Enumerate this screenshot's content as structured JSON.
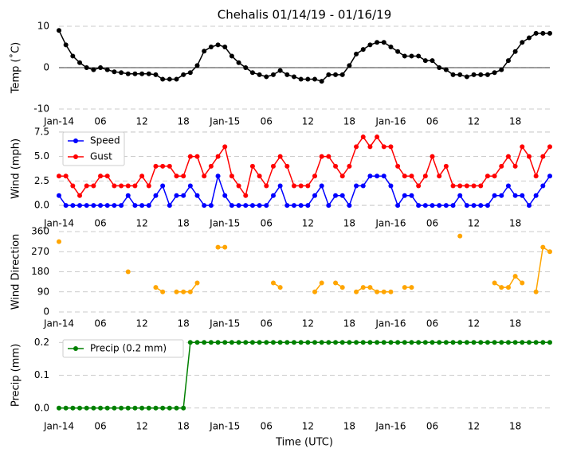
{
  "chart_data": [
    {
      "type": "line",
      "title": "Chehalis 01/14/19 - 01/16/19",
      "ylabel": "Temp (˚C)",
      "x": [
        0,
        1,
        2,
        3,
        4,
        5,
        6,
        7,
        8,
        9,
        10,
        11,
        12,
        13,
        14,
        15,
        16,
        17,
        18,
        19,
        20,
        21,
        22,
        23,
        24,
        25,
        26,
        27,
        28,
        29,
        30,
        31,
        32,
        33,
        34,
        35,
        36,
        37,
        38,
        39,
        40,
        41,
        42,
        43,
        44,
        45,
        46,
        47,
        48,
        49,
        50,
        51,
        52,
        53,
        54,
        55,
        56,
        57,
        58,
        59,
        60,
        61,
        62,
        63,
        64,
        65,
        66,
        67,
        68,
        69,
        70,
        71
      ],
      "series": [
        {
          "name": null,
          "color": "#000000",
          "values": [
            9,
            5.5,
            2.8,
            1.2,
            0,
            -0.5,
            0,
            -0.5,
            -1,
            -1.2,
            -1.5,
            -1.5,
            -1.5,
            -1.5,
            -1.7,
            -2.8,
            -2.8,
            -2.8,
            -1.7,
            -1.2,
            0.5,
            4,
            5,
            5.5,
            5,
            2.8,
            1.2,
            0,
            -1.2,
            -1.7,
            -2.2,
            -1.7,
            -0.7,
            -1.7,
            -2.2,
            -2.8,
            -2.8,
            -2.8,
            -3.3,
            -1.7,
            -1.7,
            -1.7,
            0.5,
            3.3,
            4.4,
            5.5,
            6.1,
            6.1,
            5,
            3.9,
            2.8,
            2.8,
            2.8,
            1.7,
            1.7,
            0,
            -0.5,
            -1.7,
            -1.7,
            -2.2,
            -1.7,
            -1.7,
            -1.7,
            -1.2,
            -0.5,
            1.7,
            3.9,
            6.1,
            7.2,
            8.3,
            8.3,
            8.3
          ]
        }
      ],
      "xlim": [
        0,
        71
      ],
      "xticks": [
        {
          "value": 0,
          "label": "Jan-14"
        },
        {
          "value": 6,
          "label": "06"
        },
        {
          "value": 12,
          "label": "12"
        },
        {
          "value": 18,
          "label": "18"
        },
        {
          "value": 24,
          "label": "Jan-15"
        },
        {
          "value": 30,
          "label": "06"
        },
        {
          "value": 36,
          "label": "12"
        },
        {
          "value": 42,
          "label": "18"
        },
        {
          "value": 48,
          "label": "Jan-16"
        },
        {
          "value": 54,
          "label": "06"
        },
        {
          "value": 60,
          "label": "12"
        },
        {
          "value": 66,
          "label": "18"
        }
      ],
      "ylim": [
        -10,
        10
      ],
      "yticks": [
        -10,
        0,
        10
      ],
      "grid": true,
      "zero_line": true
    },
    {
      "type": "line",
      "ylabel": "Wind (mph)",
      "x": [
        0,
        1,
        2,
        3,
        4,
        5,
        6,
        7,
        8,
        9,
        10,
        11,
        12,
        13,
        14,
        15,
        16,
        17,
        18,
        19,
        20,
        21,
        22,
        23,
        24,
        25,
        26,
        27,
        28,
        29,
        30,
        31,
        32,
        33,
        34,
        35,
        36,
        37,
        38,
        39,
        40,
        41,
        42,
        43,
        44,
        45,
        46,
        47,
        48,
        49,
        50,
        51,
        52,
        53,
        54,
        55,
        56,
        57,
        58,
        59,
        60,
        61,
        62,
        63,
        64,
        65,
        66,
        67,
        68,
        69,
        70,
        71
      ],
      "series": [
        {
          "name": "Speed",
          "color": "#0000ff",
          "values": [
            1,
            0,
            0,
            0,
            0,
            0,
            0,
            0,
            0,
            0,
            1,
            0,
            0,
            0,
            1,
            2,
            0,
            1,
            1,
            2,
            1,
            0,
            0,
            3,
            1,
            0,
            0,
            0,
            0,
            0,
            0,
            1,
            2,
            0,
            0,
            0,
            0,
            1,
            2,
            0,
            1,
            1,
            0,
            2,
            2,
            3,
            3,
            3,
            2,
            0,
            1,
            1,
            0,
            0,
            0,
            0,
            0,
            0,
            1,
            0,
            0,
            0,
            0,
            1,
            1,
            2,
            1,
            1,
            0,
            1,
            2,
            3
          ]
        },
        {
          "name": "Gust",
          "color": "#ff0000",
          "values": [
            3,
            3,
            2,
            1,
            2,
            2,
            3,
            3,
            2,
            2,
            2,
            2,
            3,
            2,
            4,
            4,
            4,
            3,
            3,
            5,
            5,
            3,
            4,
            5,
            6,
            3,
            2,
            1,
            4,
            3,
            2,
            4,
            5,
            4,
            2,
            2,
            2,
            3,
            5,
            5,
            4,
            3,
            4,
            6,
            7,
            6,
            7,
            6,
            6,
            4,
            3,
            3,
            2,
            3,
            5,
            3,
            4,
            2,
            2,
            2,
            2,
            2,
            3,
            3,
            4,
            5,
            4,
            6,
            5,
            3,
            5,
            6
          ]
        }
      ],
      "xlim": [
        0,
        71
      ],
      "xticks": [
        {
          "value": 0,
          "label": "Jan-14"
        },
        {
          "value": 6,
          "label": "06"
        },
        {
          "value": 12,
          "label": "12"
        },
        {
          "value": 18,
          "label": "18"
        },
        {
          "value": 24,
          "label": "Jan-15"
        },
        {
          "value": 30,
          "label": "06"
        },
        {
          "value": 36,
          "label": "12"
        },
        {
          "value": 42,
          "label": "18"
        },
        {
          "value": 48,
          "label": "Jan-16"
        },
        {
          "value": 54,
          "label": "06"
        },
        {
          "value": 60,
          "label": "12"
        },
        {
          "value": 66,
          "label": "18"
        }
      ],
      "ylim": [
        -0.4,
        7.9
      ],
      "yticks": [
        {
          "value": 0,
          "label": "0.0"
        },
        {
          "value": 2.5,
          "label": "2.5"
        },
        {
          "value": 5,
          "label": "5.0"
        },
        {
          "value": 7.5,
          "label": "7.5"
        }
      ],
      "grid": true,
      "legend": "upper-left"
    },
    {
      "type": "line",
      "ylabel": "Wind Direction",
      "x": [
        0,
        1,
        2,
        3,
        4,
        5,
        6,
        7,
        8,
        9,
        10,
        11,
        12,
        13,
        14,
        15,
        16,
        17,
        18,
        19,
        20,
        21,
        22,
        23,
        24,
        25,
        26,
        27,
        28,
        29,
        30,
        31,
        32,
        33,
        34,
        35,
        36,
        37,
        38,
        39,
        40,
        41,
        42,
        43,
        44,
        45,
        46,
        47,
        48,
        49,
        50,
        51,
        52,
        53,
        54,
        55,
        56,
        57,
        58,
        59,
        60,
        61,
        62,
        63,
        64,
        65,
        66,
        67,
        68,
        69,
        70,
        71
      ],
      "series": [
        {
          "name": null,
          "color": "#ffa500",
          "values": [
            315,
            null,
            null,
            null,
            null,
            null,
            null,
            null,
            null,
            null,
            180,
            null,
            null,
            null,
            110,
            90,
            null,
            90,
            90,
            90,
            130,
            null,
            null,
            290,
            290,
            null,
            null,
            null,
            null,
            null,
            null,
            130,
            110,
            null,
            null,
            null,
            null,
            90,
            130,
            null,
            130,
            110,
            null,
            90,
            110,
            110,
            90,
            90,
            90,
            null,
            110,
            110,
            null,
            null,
            null,
            null,
            null,
            null,
            340,
            null,
            null,
            null,
            null,
            130,
            110,
            110,
            160,
            130,
            null,
            90,
            290,
            270
          ]
        }
      ],
      "xlim": [
        0,
        71
      ],
      "xticks": [
        {
          "value": 0,
          "label": "Jan-14"
        },
        {
          "value": 6,
          "label": "06"
        },
        {
          "value": 12,
          "label": "12"
        },
        {
          "value": 18,
          "label": "18"
        },
        {
          "value": 24,
          "label": "Jan-15"
        },
        {
          "value": 30,
          "label": "06"
        },
        {
          "value": 36,
          "label": "12"
        },
        {
          "value": 42,
          "label": "18"
        },
        {
          "value": 48,
          "label": "Jan-16"
        },
        {
          "value": 54,
          "label": "06"
        },
        {
          "value": 60,
          "label": "12"
        },
        {
          "value": 66,
          "label": "18"
        }
      ],
      "ylim": [
        0,
        360
      ],
      "yticks": [
        0,
        90,
        180,
        270,
        360
      ],
      "grid": true
    },
    {
      "type": "line",
      "ylabel": "Precip (mm)",
      "xlabel": "Time (UTC)",
      "x": [
        0,
        1,
        2,
        3,
        4,
        5,
        6,
        7,
        8,
        9,
        10,
        11,
        12,
        13,
        14,
        15,
        16,
        17,
        18,
        19,
        20,
        21,
        22,
        23,
        24,
        25,
        26,
        27,
        28,
        29,
        30,
        31,
        32,
        33,
        34,
        35,
        36,
        37,
        38,
        39,
        40,
        41,
        42,
        43,
        44,
        45,
        46,
        47,
        48,
        49,
        50,
        51,
        52,
        53,
        54,
        55,
        56,
        57,
        58,
        59,
        60,
        61,
        62,
        63,
        64,
        65,
        66,
        67,
        68,
        69,
        70,
        71
      ],
      "series": [
        {
          "name": "Precip (0.2 mm)",
          "color": "#008000",
          "values": [
            0,
            0,
            0,
            0,
            0,
            0,
            0,
            0,
            0,
            0,
            0,
            0,
            0,
            0,
            0,
            0,
            0,
            0,
            0,
            0.2,
            0.2,
            0.2,
            0.2,
            0.2,
            0.2,
            0.2,
            0.2,
            0.2,
            0.2,
            0.2,
            0.2,
            0.2,
            0.2,
            0.2,
            0.2,
            0.2,
            0.2,
            0.2,
            0.2,
            0.2,
            0.2,
            0.2,
            0.2,
            0.2,
            0.2,
            0.2,
            0.2,
            0.2,
            0.2,
            0.2,
            0.2,
            0.2,
            0.2,
            0.2,
            0.2,
            0.2,
            0.2,
            0.2,
            0.2,
            0.2,
            0.2,
            0.2,
            0.2,
            0.2,
            0.2,
            0.2,
            0.2,
            0.2,
            0.2,
            0.2,
            0.2,
            0.2
          ]
        }
      ],
      "xlim": [
        0,
        71
      ],
      "xticks": [
        {
          "value": 0,
          "label": "Jan-14"
        },
        {
          "value": 6,
          "label": "06"
        },
        {
          "value": 12,
          "label": "12"
        },
        {
          "value": 18,
          "label": "18"
        },
        {
          "value": 24,
          "label": "Jan-15"
        },
        {
          "value": 30,
          "label": "06"
        },
        {
          "value": 36,
          "label": "12"
        },
        {
          "value": 42,
          "label": "18"
        },
        {
          "value": 48,
          "label": "Jan-16"
        },
        {
          "value": 54,
          "label": "06"
        },
        {
          "value": 60,
          "label": "12"
        },
        {
          "value": 66,
          "label": "18"
        }
      ],
      "ylim": [
        -0.02,
        0.22
      ],
      "yticks": [
        {
          "value": 0,
          "label": "0.0"
        },
        {
          "value": 0.1,
          "label": "0.1"
        },
        {
          "value": 0.2,
          "label": "0.2"
        }
      ],
      "grid": true,
      "legend": "upper-left"
    }
  ]
}
